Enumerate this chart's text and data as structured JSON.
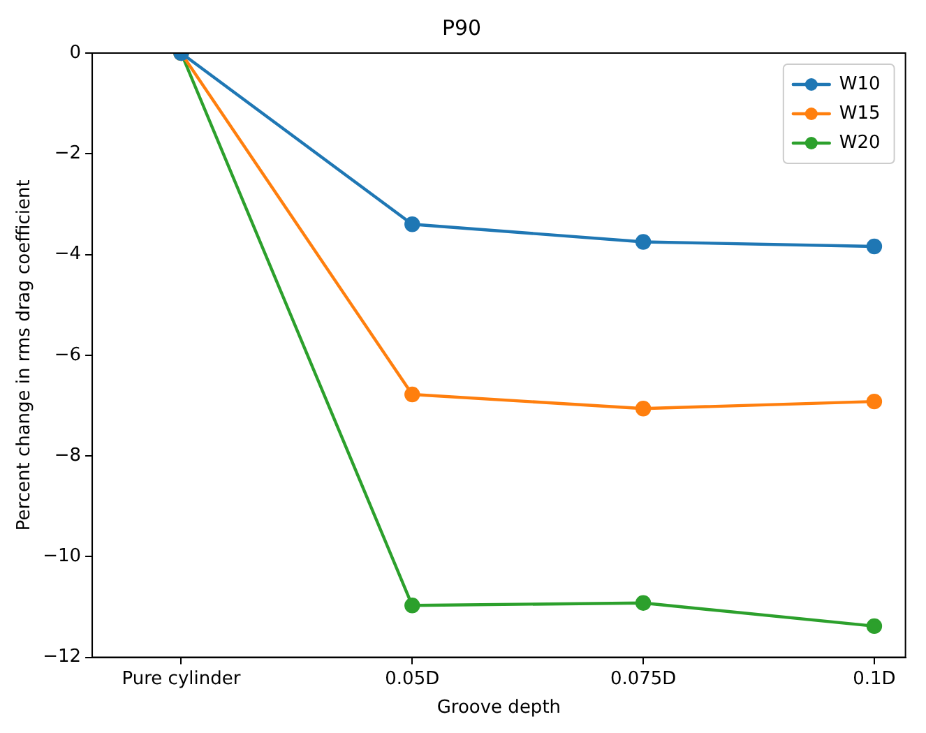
{
  "chart_data": {
    "type": "line",
    "title": "P90",
    "xlabel": "Groove depth",
    "ylabel": "Percent change in rms drag coefficient",
    "categories": [
      "Pure cylinder",
      "0.05D",
      "0.075D",
      "0.1D"
    ],
    "series": [
      {
        "name": "W10",
        "color": "#1f77b4",
        "values": [
          0,
          -3.4,
          -3.75,
          -3.84
        ]
      },
      {
        "name": "W15",
        "color": "#ff7f0e",
        "values": [
          0,
          -6.78,
          -7.06,
          -6.92
        ]
      },
      {
        "name": "W20",
        "color": "#2ca02c",
        "values": [
          0,
          -10.97,
          -10.92,
          -11.38
        ]
      }
    ],
    "ylim": [
      -12,
      0
    ],
    "yticks": [
      -12,
      -10,
      -8,
      -6,
      -4,
      -2,
      0
    ],
    "grid": false,
    "legend": "top right",
    "marker": "circle",
    "line_style": "solid"
  }
}
